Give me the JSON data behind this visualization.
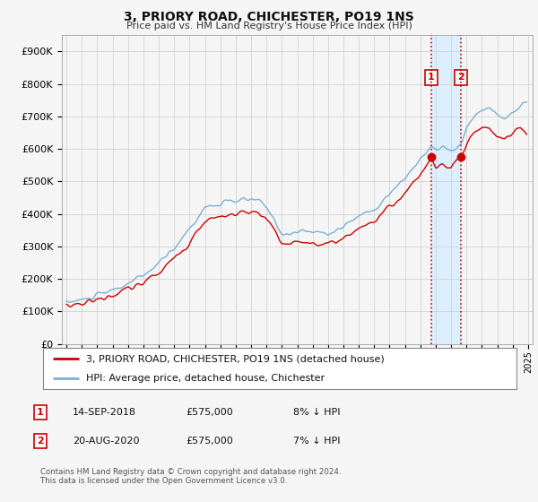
{
  "title": "3, PRIORY ROAD, CHICHESTER, PO19 1NS",
  "subtitle": "Price paid vs. HM Land Registry's House Price Index (HPI)",
  "ylabel_ticks": [
    "£0",
    "£100K",
    "£200K",
    "£300K",
    "£400K",
    "£500K",
    "£600K",
    "£700K",
    "£800K",
    "£900K"
  ],
  "ytick_values": [
    0,
    100000,
    200000,
    300000,
    400000,
    500000,
    600000,
    700000,
    800000,
    900000
  ],
  "ylim": [
    0,
    950000
  ],
  "xlim_start": 1994.7,
  "xlim_end": 2025.3,
  "legend_line1": "3, PRIORY ROAD, CHICHESTER, PO19 1NS (detached house)",
  "legend_line2": "HPI: Average price, detached house, Chichester",
  "transaction1_date": "14-SEP-2018",
  "transaction1_price": "£575,000",
  "transaction1_hpi": "8% ↓ HPI",
  "transaction2_date": "20-AUG-2020",
  "transaction2_price": "£575,000",
  "transaction2_hpi": "7% ↓ HPI",
  "footnote": "Contains HM Land Registry data © Crown copyright and database right 2024.\nThis data is licensed under the Open Government Licence v3.0.",
  "line_color_red": "#cc0000",
  "line_color_blue": "#7ab0d4",
  "vline_color": "#cc0000",
  "shade_color": "#ddeeff",
  "background_color": "#f5f5f5",
  "grid_color": "#cccccc",
  "transaction1_x": 2018.71,
  "transaction1_y": 575000,
  "transaction2_x": 2020.63,
  "transaction2_y": 575000,
  "marker_color": "#cc0000",
  "marker_size": 6
}
